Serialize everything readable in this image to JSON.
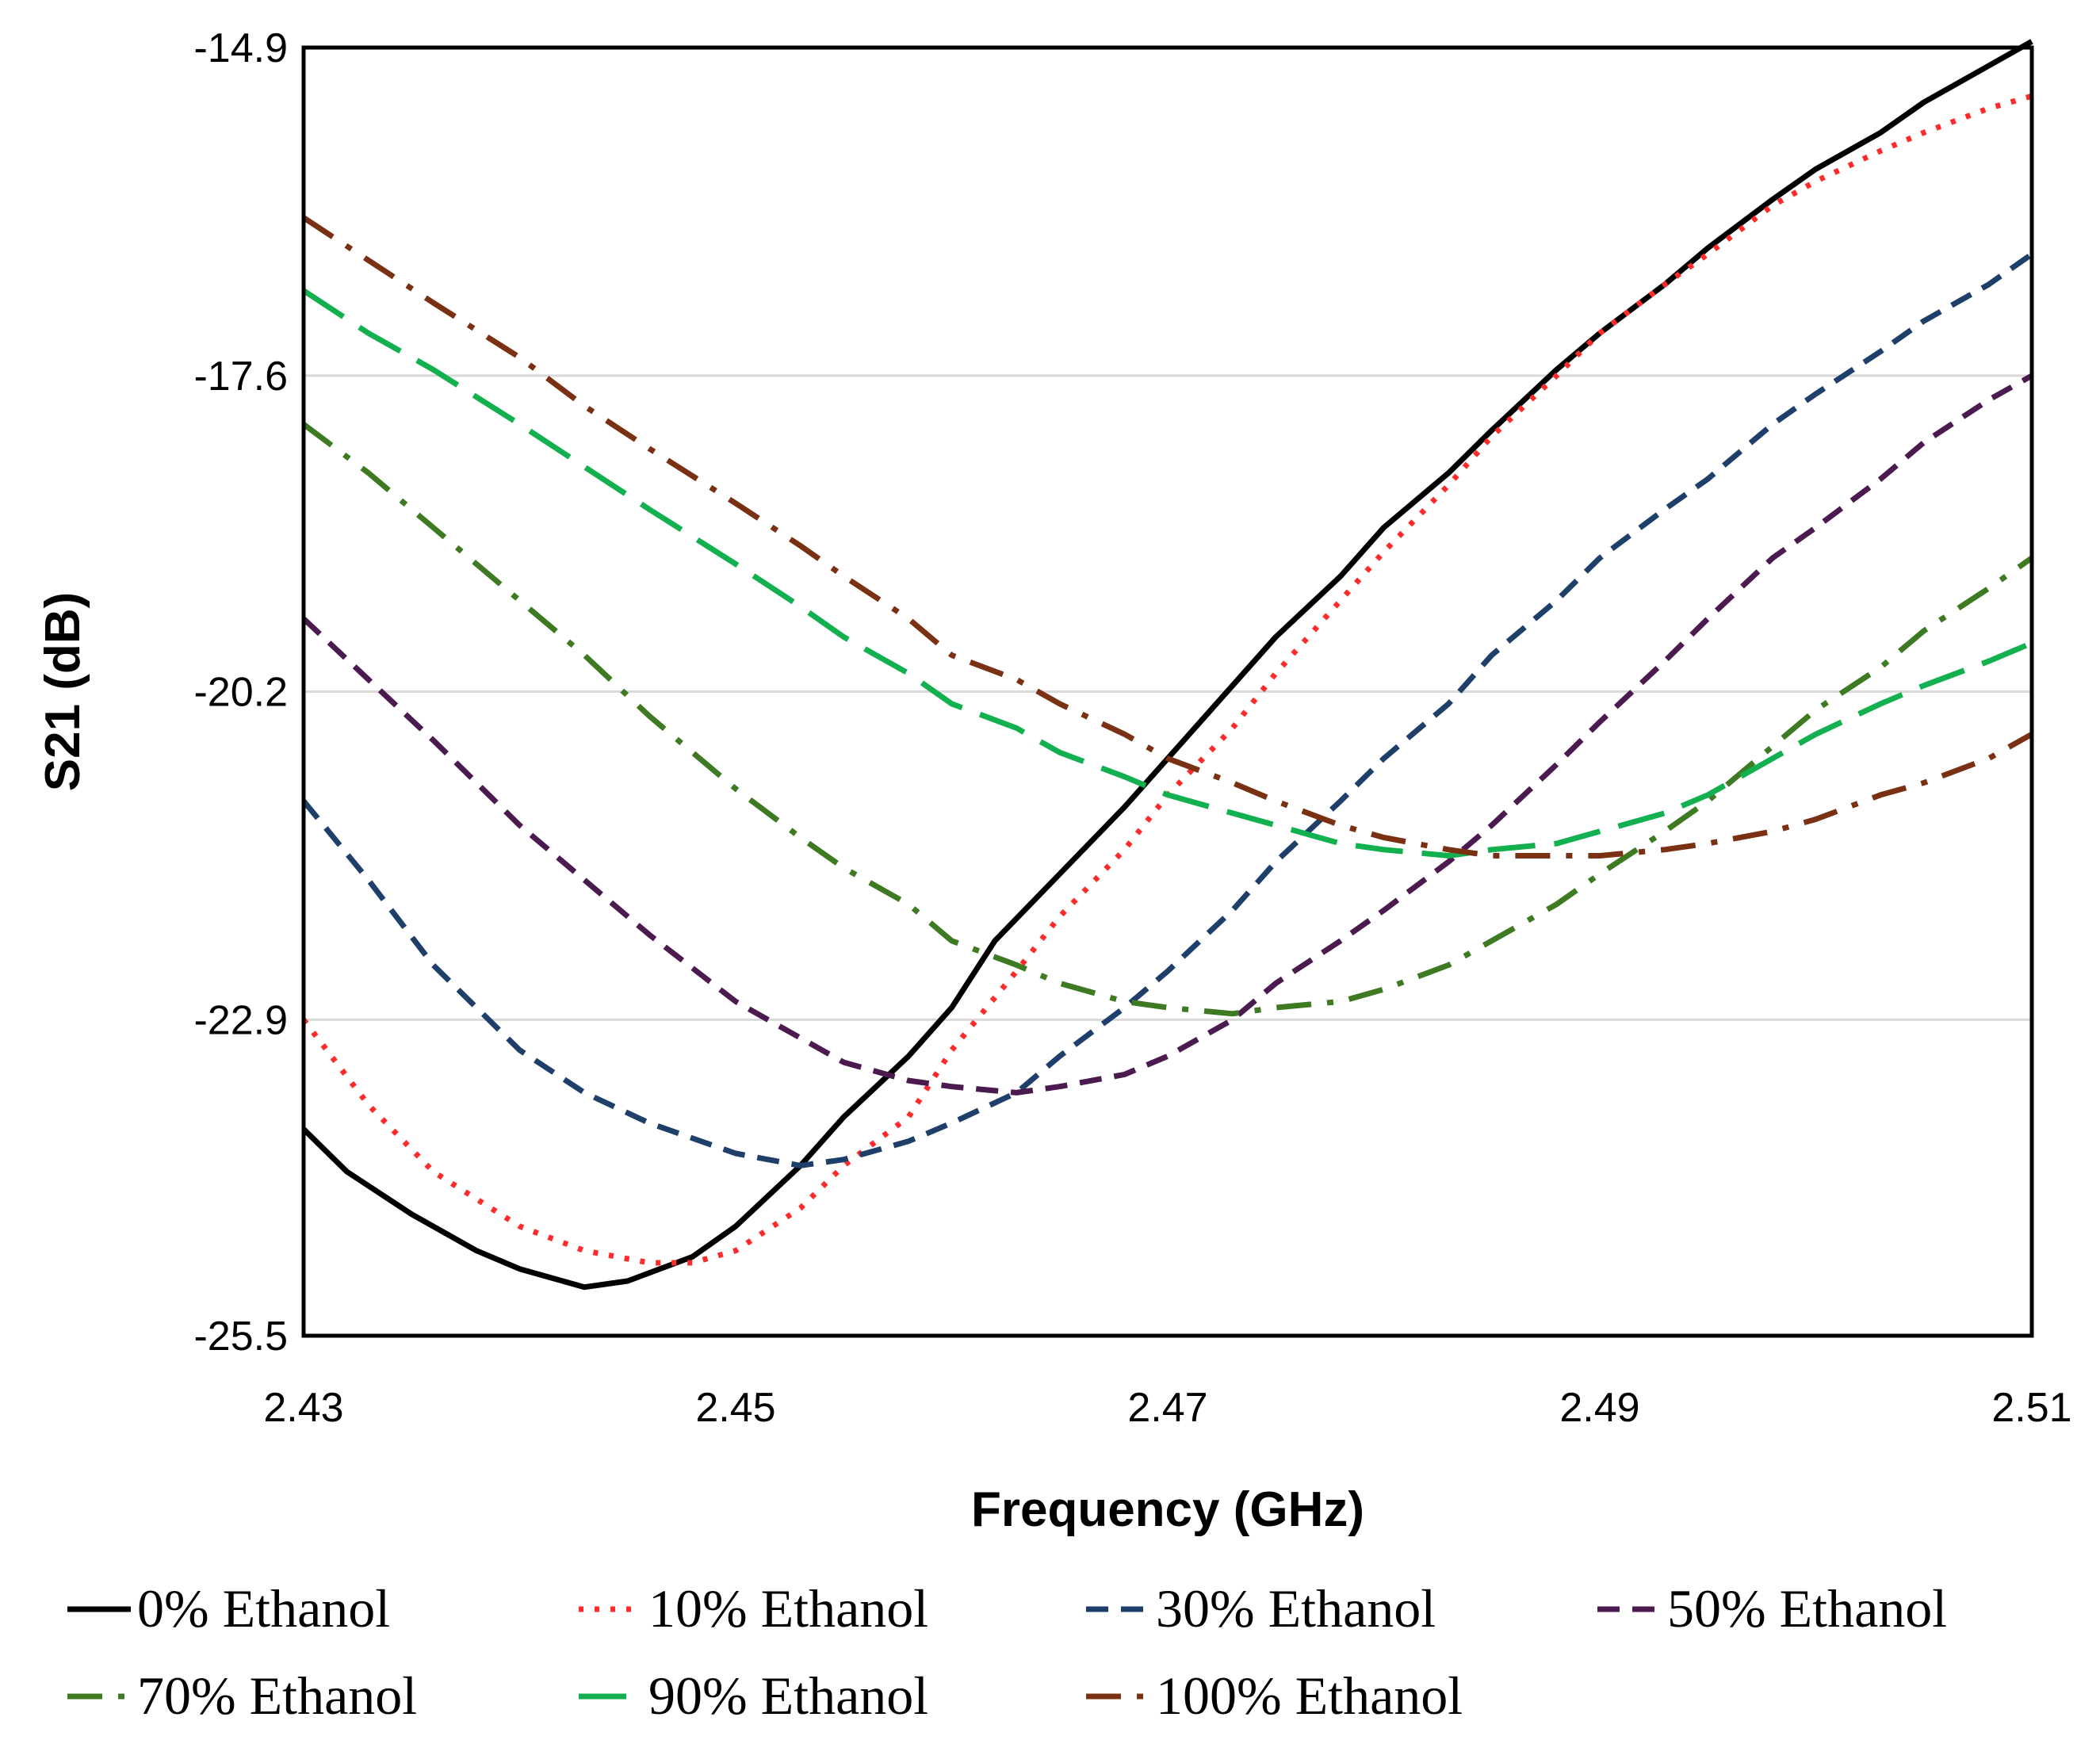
{
  "chart_data": {
    "type": "line",
    "title": "",
    "xlabel": "Frequency (GHz)",
    "ylabel": "S21 (dB)",
    "xlim": [
      2.43,
      2.51
    ],
    "ylim": [
      -25.5,
      -14.9
    ],
    "x_ticks": [
      "2.43",
      "2.45",
      "2.47",
      "2.49",
      "2.51"
    ],
    "y_ticks": [
      "-14.9",
      "-17.6",
      "-20.2",
      "-22.9",
      "-25.5"
    ],
    "grid": "horizontal",
    "legend_position": "bottom",
    "series": [
      {
        "name": "0% Ethanol",
        "color": "#000000",
        "dash": "solid",
        "points": [
          [
            2.43,
            -23.8
          ],
          [
            2.432,
            -24.15
          ],
          [
            2.435,
            -24.5
          ],
          [
            2.438,
            -24.8
          ],
          [
            2.44,
            -24.95
          ],
          [
            2.443,
            -25.1
          ],
          [
            2.445,
            -25.05
          ],
          [
            2.448,
            -24.85
          ],
          [
            2.45,
            -24.6
          ],
          [
            2.453,
            -24.1
          ],
          [
            2.455,
            -23.7
          ],
          [
            2.458,
            -23.2
          ],
          [
            2.46,
            -22.8
          ],
          [
            2.462,
            -22.25
          ],
          [
            2.465,
            -21.7
          ],
          [
            2.468,
            -21.15
          ],
          [
            2.47,
            -20.75
          ],
          [
            2.472,
            -20.35
          ],
          [
            2.475,
            -19.75
          ],
          [
            2.478,
            -19.25
          ],
          [
            2.48,
            -18.85
          ],
          [
            2.483,
            -18.4
          ],
          [
            2.485,
            -18.05
          ],
          [
            2.488,
            -17.55
          ],
          [
            2.49,
            -17.25
          ],
          [
            2.493,
            -16.85
          ],
          [
            2.495,
            -16.55
          ],
          [
            2.498,
            -16.15
          ],
          [
            2.5,
            -15.9
          ],
          [
            2.503,
            -15.6
          ],
          [
            2.505,
            -15.35
          ],
          [
            2.508,
            -15.05
          ],
          [
            2.51,
            -14.85
          ]
        ]
      },
      {
        "name": "10% Ethanol",
        "color": "#ff2a2a",
        "dash": "dotted",
        "points": [
          [
            2.43,
            -22.9
          ],
          [
            2.433,
            -23.6
          ],
          [
            2.436,
            -24.15
          ],
          [
            2.44,
            -24.6
          ],
          [
            2.443,
            -24.8
          ],
          [
            2.446,
            -24.9
          ],
          [
            2.448,
            -24.9
          ],
          [
            2.45,
            -24.8
          ],
          [
            2.453,
            -24.45
          ],
          [
            2.455,
            -24.1
          ],
          [
            2.458,
            -23.7
          ],
          [
            2.46,
            -23.15
          ],
          [
            2.463,
            -22.5
          ],
          [
            2.465,
            -22.05
          ],
          [
            2.468,
            -21.5
          ],
          [
            2.47,
            -21.05
          ],
          [
            2.473,
            -20.5
          ],
          [
            2.475,
            -20.05
          ],
          [
            2.478,
            -19.45
          ],
          [
            2.48,
            -19.05
          ],
          [
            2.483,
            -18.5
          ],
          [
            2.485,
            -18.1
          ],
          [
            2.488,
            -17.6
          ],
          [
            2.49,
            -17.25
          ],
          [
            2.493,
            -16.85
          ],
          [
            2.495,
            -16.6
          ],
          [
            2.498,
            -16.2
          ],
          [
            2.5,
            -16.0
          ],
          [
            2.503,
            -15.75
          ],
          [
            2.505,
            -15.6
          ],
          [
            2.508,
            -15.4
          ],
          [
            2.51,
            -15.3
          ]
        ]
      },
      {
        "name": "30% Ethanol",
        "color": "#1f3f6b",
        "dash": "dashed",
        "points": [
          [
            2.43,
            -21.1
          ],
          [
            2.433,
            -21.75
          ],
          [
            2.436,
            -22.45
          ],
          [
            2.44,
            -23.15
          ],
          [
            2.443,
            -23.5
          ],
          [
            2.446,
            -23.75
          ],
          [
            2.45,
            -24.0
          ],
          [
            2.453,
            -24.1
          ],
          [
            2.455,
            -24.05
          ],
          [
            2.458,
            -23.9
          ],
          [
            2.46,
            -23.75
          ],
          [
            2.463,
            -23.5
          ],
          [
            2.465,
            -23.2
          ],
          [
            2.468,
            -22.8
          ],
          [
            2.47,
            -22.5
          ],
          [
            2.473,
            -22.0
          ],
          [
            2.475,
            -21.6
          ],
          [
            2.478,
            -21.1
          ],
          [
            2.48,
            -20.75
          ],
          [
            2.483,
            -20.3
          ],
          [
            2.485,
            -19.9
          ],
          [
            2.488,
            -19.45
          ],
          [
            2.49,
            -19.1
          ],
          [
            2.493,
            -18.7
          ],
          [
            2.495,
            -18.45
          ],
          [
            2.498,
            -18.0
          ],
          [
            2.5,
            -17.75
          ],
          [
            2.503,
            -17.4
          ],
          [
            2.505,
            -17.15
          ],
          [
            2.508,
            -16.85
          ],
          [
            2.51,
            -16.6
          ]
        ]
      },
      {
        "name": "50% Ethanol",
        "color": "#4b1a4f",
        "dash": "dashed",
        "points": [
          [
            2.43,
            -19.6
          ],
          [
            2.433,
            -20.1
          ],
          [
            2.436,
            -20.6
          ],
          [
            2.44,
            -21.3
          ],
          [
            2.443,
            -21.75
          ],
          [
            2.446,
            -22.2
          ],
          [
            2.45,
            -22.75
          ],
          [
            2.453,
            -23.05
          ],
          [
            2.455,
            -23.25
          ],
          [
            2.458,
            -23.4
          ],
          [
            2.46,
            -23.45
          ],
          [
            2.463,
            -23.5
          ],
          [
            2.465,
            -23.45
          ],
          [
            2.468,
            -23.35
          ],
          [
            2.47,
            -23.2
          ],
          [
            2.473,
            -22.9
          ],
          [
            2.475,
            -22.6
          ],
          [
            2.478,
            -22.25
          ],
          [
            2.48,
            -22.0
          ],
          [
            2.483,
            -21.6
          ],
          [
            2.485,
            -21.3
          ],
          [
            2.488,
            -20.8
          ],
          [
            2.49,
            -20.45
          ],
          [
            2.493,
            -19.95
          ],
          [
            2.495,
            -19.6
          ],
          [
            2.498,
            -19.1
          ],
          [
            2.5,
            -18.85
          ],
          [
            2.503,
            -18.45
          ],
          [
            2.505,
            -18.15
          ],
          [
            2.508,
            -17.8
          ],
          [
            2.51,
            -17.6
          ]
        ]
      },
      {
        "name": "70% Ethanol",
        "color": "#3d7a22",
        "dash": "dashdot",
        "points": [
          [
            2.43,
            -18.0
          ],
          [
            2.433,
            -18.4
          ],
          [
            2.436,
            -18.85
          ],
          [
            2.44,
            -19.45
          ],
          [
            2.443,
            -19.9
          ],
          [
            2.446,
            -20.4
          ],
          [
            2.45,
            -21.0
          ],
          [
            2.453,
            -21.4
          ],
          [
            2.455,
            -21.65
          ],
          [
            2.458,
            -21.95
          ],
          [
            2.46,
            -22.25
          ],
          [
            2.463,
            -22.45
          ],
          [
            2.465,
            -22.6
          ],
          [
            2.468,
            -22.75
          ],
          [
            2.47,
            -22.8
          ],
          [
            2.473,
            -22.85
          ],
          [
            2.475,
            -22.8
          ],
          [
            2.478,
            -22.75
          ],
          [
            2.48,
            -22.65
          ],
          [
            2.483,
            -22.45
          ],
          [
            2.485,
            -22.25
          ],
          [
            2.488,
            -21.95
          ],
          [
            2.49,
            -21.7
          ],
          [
            2.493,
            -21.35
          ],
          [
            2.495,
            -21.1
          ],
          [
            2.498,
            -20.65
          ],
          [
            2.5,
            -20.35
          ],
          [
            2.503,
            -20.0
          ],
          [
            2.505,
            -19.7
          ],
          [
            2.508,
            -19.35
          ],
          [
            2.51,
            -19.1
          ]
        ]
      },
      {
        "name": "90% Ethanol",
        "color": "#12b04f",
        "dash": "longdash",
        "points": [
          [
            2.43,
            -16.9
          ],
          [
            2.433,
            -17.25
          ],
          [
            2.436,
            -17.55
          ],
          [
            2.44,
            -18.0
          ],
          [
            2.443,
            -18.35
          ],
          [
            2.446,
            -18.7
          ],
          [
            2.45,
            -19.15
          ],
          [
            2.453,
            -19.5
          ],
          [
            2.455,
            -19.75
          ],
          [
            2.458,
            -20.05
          ],
          [
            2.46,
            -20.3
          ],
          [
            2.463,
            -20.5
          ],
          [
            2.465,
            -20.7
          ],
          [
            2.468,
            -20.9
          ],
          [
            2.47,
            -21.05
          ],
          [
            2.473,
            -21.2
          ],
          [
            2.475,
            -21.3
          ],
          [
            2.478,
            -21.45
          ],
          [
            2.48,
            -21.5
          ],
          [
            2.483,
            -21.55
          ],
          [
            2.485,
            -21.5
          ],
          [
            2.488,
            -21.45
          ],
          [
            2.49,
            -21.35
          ],
          [
            2.493,
            -21.2
          ],
          [
            2.495,
            -21.05
          ],
          [
            2.498,
            -20.75
          ],
          [
            2.5,
            -20.55
          ],
          [
            2.503,
            -20.3
          ],
          [
            2.505,
            -20.15
          ],
          [
            2.508,
            -19.95
          ],
          [
            2.51,
            -19.8
          ]
        ]
      },
      {
        "name": "100% Ethanol",
        "color": "#7a3012",
        "dash": "dashdot",
        "points": [
          [
            2.43,
            -16.3
          ],
          [
            2.433,
            -16.65
          ],
          [
            2.436,
            -17.0
          ],
          [
            2.44,
            -17.45
          ],
          [
            2.443,
            -17.85
          ],
          [
            2.446,
            -18.2
          ],
          [
            2.45,
            -18.65
          ],
          [
            2.453,
            -19.0
          ],
          [
            2.455,
            -19.25
          ],
          [
            2.458,
            -19.6
          ],
          [
            2.46,
            -19.9
          ],
          [
            2.463,
            -20.1
          ],
          [
            2.465,
            -20.3
          ],
          [
            2.468,
            -20.55
          ],
          [
            2.47,
            -20.75
          ],
          [
            2.473,
            -20.95
          ],
          [
            2.475,
            -21.1
          ],
          [
            2.478,
            -21.3
          ],
          [
            2.48,
            -21.4
          ],
          [
            2.483,
            -21.5
          ],
          [
            2.485,
            -21.55
          ],
          [
            2.488,
            -21.55
          ],
          [
            2.49,
            -21.55
          ],
          [
            2.493,
            -21.5
          ],
          [
            2.495,
            -21.45
          ],
          [
            2.498,
            -21.35
          ],
          [
            2.5,
            -21.25
          ],
          [
            2.503,
            -21.05
          ],
          [
            2.505,
            -20.95
          ],
          [
            2.508,
            -20.75
          ],
          [
            2.51,
            -20.55
          ]
        ]
      }
    ]
  }
}
